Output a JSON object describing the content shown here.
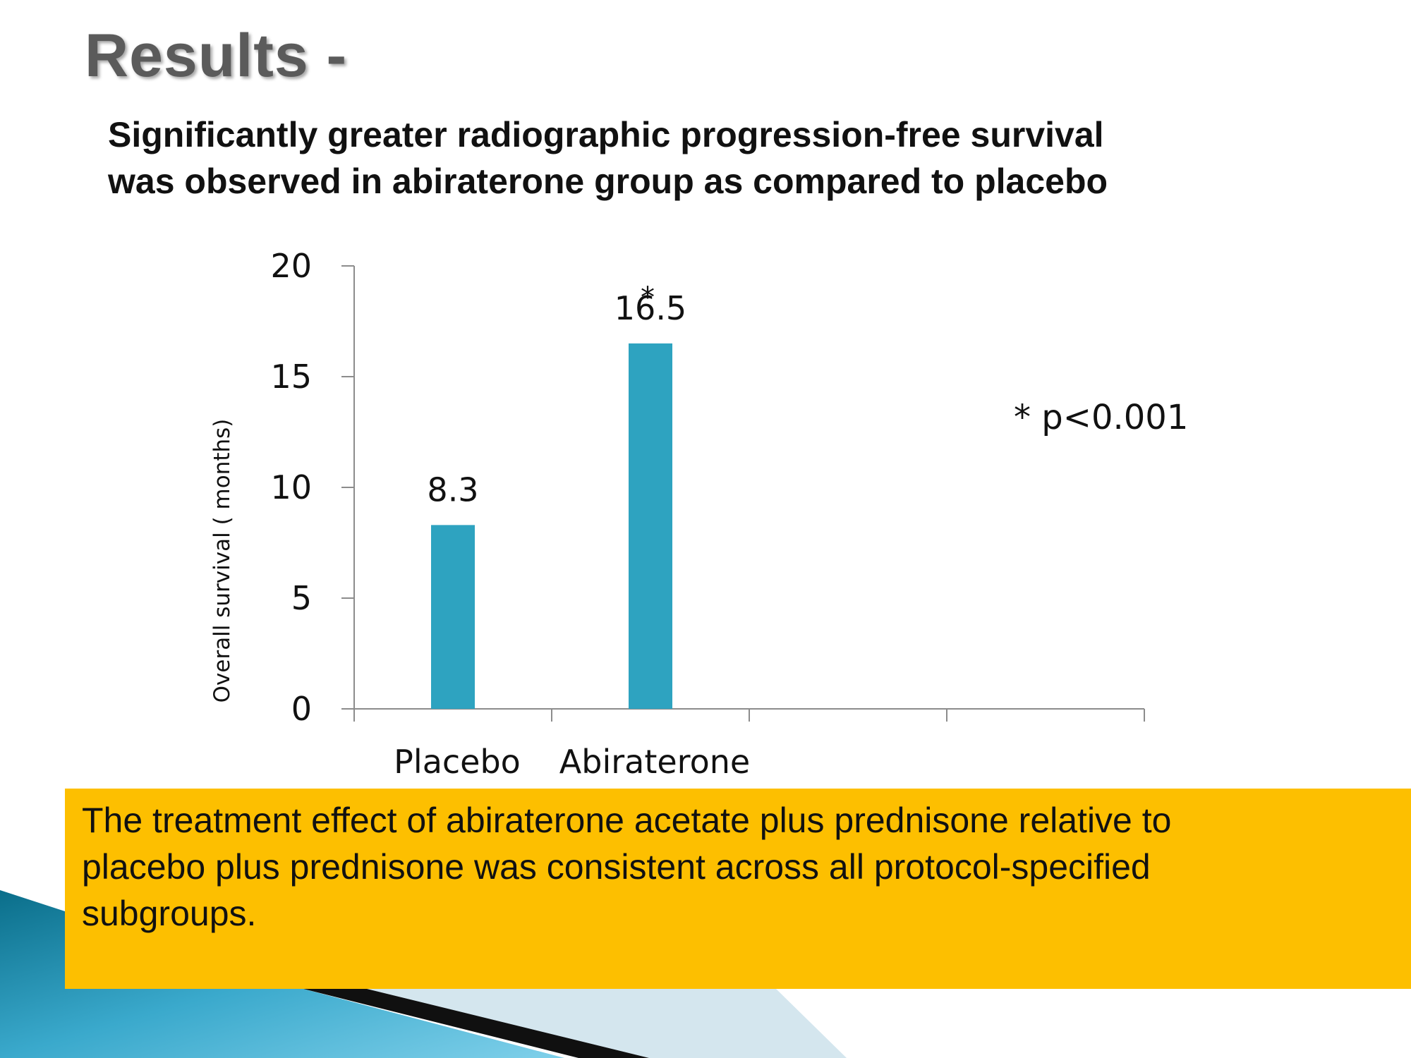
{
  "title": "Results -",
  "subtitle": [
    "Significantly greater radiographic progression-free survival",
    "was observed in abiraterone group as compared to placebo"
  ],
  "chart_data": {
    "type": "bar",
    "categories": [
      "Placebo",
      "Abiraterone"
    ],
    "values": [
      8.3,
      16.5
    ],
    "data_labels": [
      "8.3",
      "16.5"
    ],
    "ylabel": "Overall survival ( months)",
    "yticks": [
      0,
      5,
      10,
      15,
      20
    ],
    "ylim": [
      0,
      20
    ],
    "axis_slots": 4,
    "significance_marker": "*",
    "annotation": "* p<0.001",
    "bar_color": "#2ea3c0",
    "grid": false,
    "legend": "none"
  },
  "callout": {
    "lines": [
      "The treatment effect of abiraterone acetate plus prednisone relative to",
      "placebo plus prednisone  was consistent across all protocol-specified",
      "subgroups."
    ],
    "background": "#fdbf00"
  },
  "theme": {
    "accent_dark": "#0a6e8a",
    "accent_light": "#5fc3e0"
  }
}
